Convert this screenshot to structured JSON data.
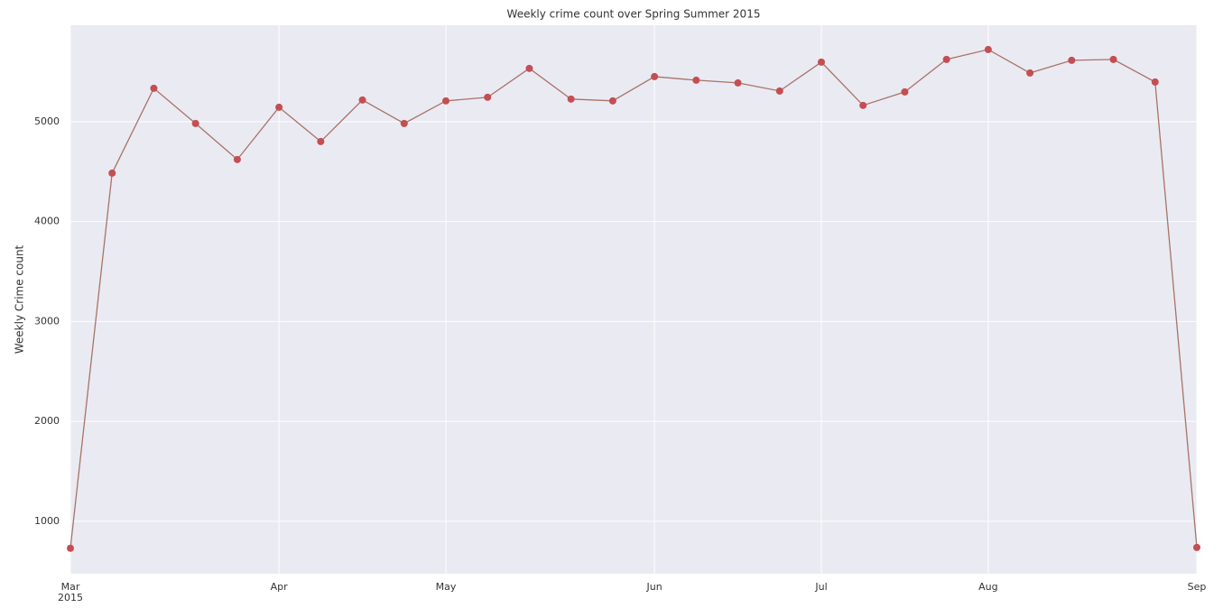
{
  "chart_data": {
    "type": "line",
    "title": "Weekly crime count over Spring Summer 2015",
    "y_label": "Weekly Crime count",
    "x_sublabel": "2015",
    "categories": [
      "Mar",
      null,
      null,
      null,
      null,
      "Apr",
      null,
      null,
      null,
      "May",
      null,
      null,
      null,
      null,
      "Jun",
      null,
      null,
      null,
      "Jul",
      null,
      null,
      null,
      "Aug",
      null,
      null,
      null,
      null,
      "Sep"
    ],
    "series": [
      {
        "name": "Weekly crime count",
        "color": "#c44e52",
        "line_color": "#a87368",
        "values": [
          730,
          4485,
          5334,
          4982,
          4621,
          5144,
          4801,
          5217,
          4982,
          5208,
          5244,
          5533,
          5226,
          5208,
          5451,
          5415,
          5388,
          5307,
          5596,
          5163,
          5298,
          5623,
          5722,
          5487,
          5614,
          5623,
          5397,
          738
        ]
      }
    ],
    "ylim": [
      475,
      5965
    ],
    "yticks": [
      1000,
      2000,
      3000,
      4000,
      5000
    ],
    "grid": true
  }
}
